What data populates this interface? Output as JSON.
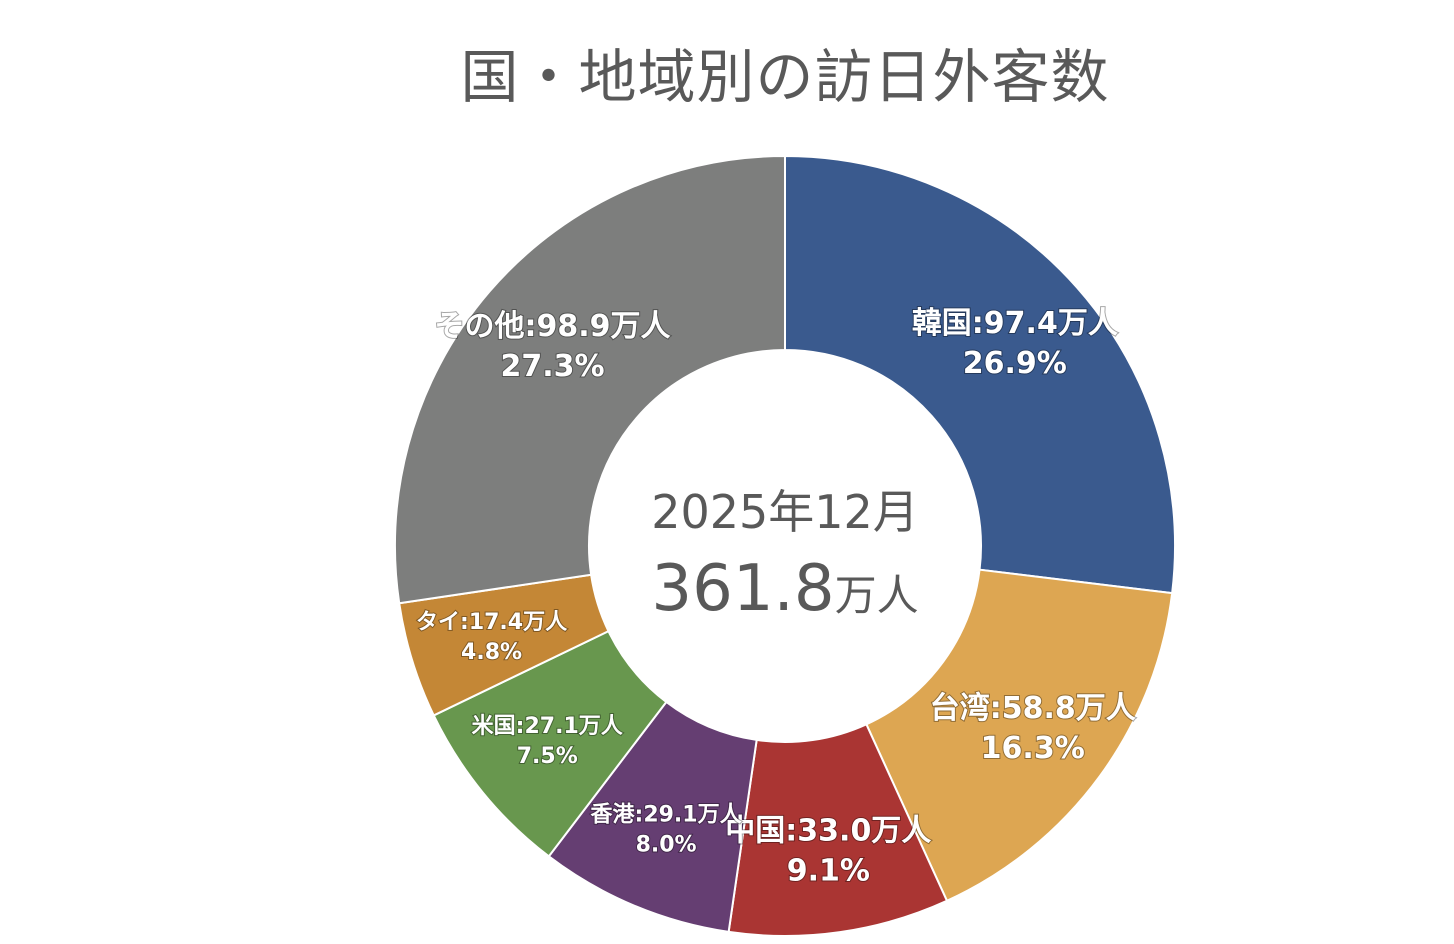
{
  "chart_data": {
    "type": "pie",
    "title": "国・地域別の訪日外客数",
    "center": {
      "period": "2025年12月",
      "total_value": "361.8",
      "total_unit": "万人"
    },
    "unit": "万人",
    "slices": [
      {
        "label": "韓国",
        "value": 97.4,
        "percent": "26.9%",
        "color": "#3A5A8E",
        "text": "韓国:97.4万人"
      },
      {
        "label": "台湾",
        "value": 58.8,
        "percent": "16.3%",
        "color": "#DDA652",
        "text": "台湾:58.8万人"
      },
      {
        "label": "中国",
        "value": 33.0,
        "percent": "9.1%",
        "color": "#AA3533",
        "text": "中国:33.0万人"
      },
      {
        "label": "香港",
        "value": 29.1,
        "percent": "8.0%",
        "color": "#653E72",
        "text": "香港:29.1万人"
      },
      {
        "label": "米国",
        "value": 27.1,
        "percent": "7.5%",
        "color": "#68974E",
        "text": "米国:27.1万人"
      },
      {
        "label": "タイ",
        "value": 17.4,
        "percent": "4.8%",
        "color": "#C48736",
        "text": "タイ:17.4万人"
      },
      {
        "label": "その他",
        "value": 98.9,
        "percent": "27.3%",
        "color": "#7D7E7D",
        "text": "その他:98.9万人"
      }
    ]
  }
}
